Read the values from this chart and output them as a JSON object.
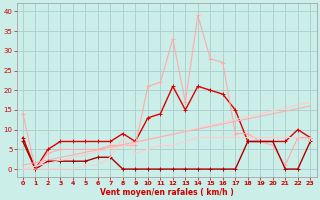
{
  "xlabel": "Vent moyen/en rafales ( km/h )",
  "bg_color": "#cceee8",
  "grid_color": "#aacccc",
  "xticks": [
    0,
    1,
    2,
    3,
    4,
    5,
    6,
    7,
    8,
    9,
    10,
    11,
    12,
    13,
    14,
    15,
    16,
    17,
    18,
    19,
    20,
    21,
    22,
    23
  ],
  "yticks": [
    0,
    5,
    10,
    15,
    20,
    25,
    30,
    35,
    40
  ],
  "ylim": [
    -2,
    42
  ],
  "xlim": [
    -0.5,
    23.5
  ],
  "series": [
    {
      "x": [
        0,
        1,
        2,
        3,
        4,
        5,
        6,
        7,
        8,
        9,
        10,
        11,
        12,
        13,
        14,
        15,
        16,
        17,
        18,
        19,
        20,
        21,
        22,
        23
      ],
      "y": [
        8,
        0,
        5,
        7,
        7,
        7,
        7,
        7,
        9,
        7,
        13,
        14,
        21,
        15,
        21,
        20,
        19,
        15,
        7,
        7,
        7,
        7,
        10,
        8
      ],
      "color": "#dd0000",
      "lw": 1.0,
      "marker": "+",
      "ms": 3
    },
    {
      "x": [
        0,
        1,
        2,
        3,
        4,
        5,
        6,
        7,
        8,
        9,
        10,
        11,
        12,
        13,
        14,
        15,
        16,
        17,
        18,
        19,
        20,
        21,
        22,
        23
      ],
      "y": [
        14,
        0,
        4,
        5,
        5,
        5,
        5,
        6,
        6,
        6,
        21,
        22,
        33,
        17,
        39,
        28,
        27,
        9,
        9,
        7,
        6,
        1,
        8,
        8
      ],
      "color": "#ffaaaa",
      "lw": 0.8,
      "marker": "+",
      "ms": 2.5
    },
    {
      "x": [
        0,
        1,
        2,
        3,
        4,
        5,
        6,
        7,
        8,
        9,
        10,
        11,
        12,
        13,
        14,
        15,
        16,
        17,
        18,
        19,
        20,
        21,
        22,
        23
      ],
      "y": [
        7,
        0,
        2,
        2,
        2,
        2,
        3,
        3,
        0,
        0,
        0,
        0,
        0,
        0,
        0,
        0,
        0,
        0,
        7,
        7,
        7,
        0,
        0,
        7
      ],
      "color": "#aa0000",
      "lw": 1.0,
      "marker": "+",
      "ms": 2.5
    },
    {
      "x": [
        0,
        1,
        2,
        3,
        4,
        5,
        6,
        7,
        8,
        9,
        10,
        11,
        12,
        13,
        14,
        15,
        16,
        17,
        18,
        19,
        20,
        21,
        22,
        23
      ],
      "y": [
        0,
        0,
        0,
        0,
        0,
        1,
        1,
        3,
        8,
        4,
        5,
        6,
        6,
        7,
        8,
        8,
        8,
        8,
        8,
        8,
        8,
        8,
        8,
        7
      ],
      "color": "#ffcccc",
      "lw": 0.8,
      "marker": null,
      "ms": 0
    },
    {
      "x": [
        0,
        23
      ],
      "y": [
        0,
        17
      ],
      "color": "#ffcccc",
      "lw": 0.8,
      "marker": null,
      "ms": 0
    },
    {
      "x": [
        0,
        23
      ],
      "y": [
        1,
        16
      ],
      "color": "#ffaaaa",
      "lw": 0.7,
      "marker": null,
      "ms": 0
    }
  ]
}
